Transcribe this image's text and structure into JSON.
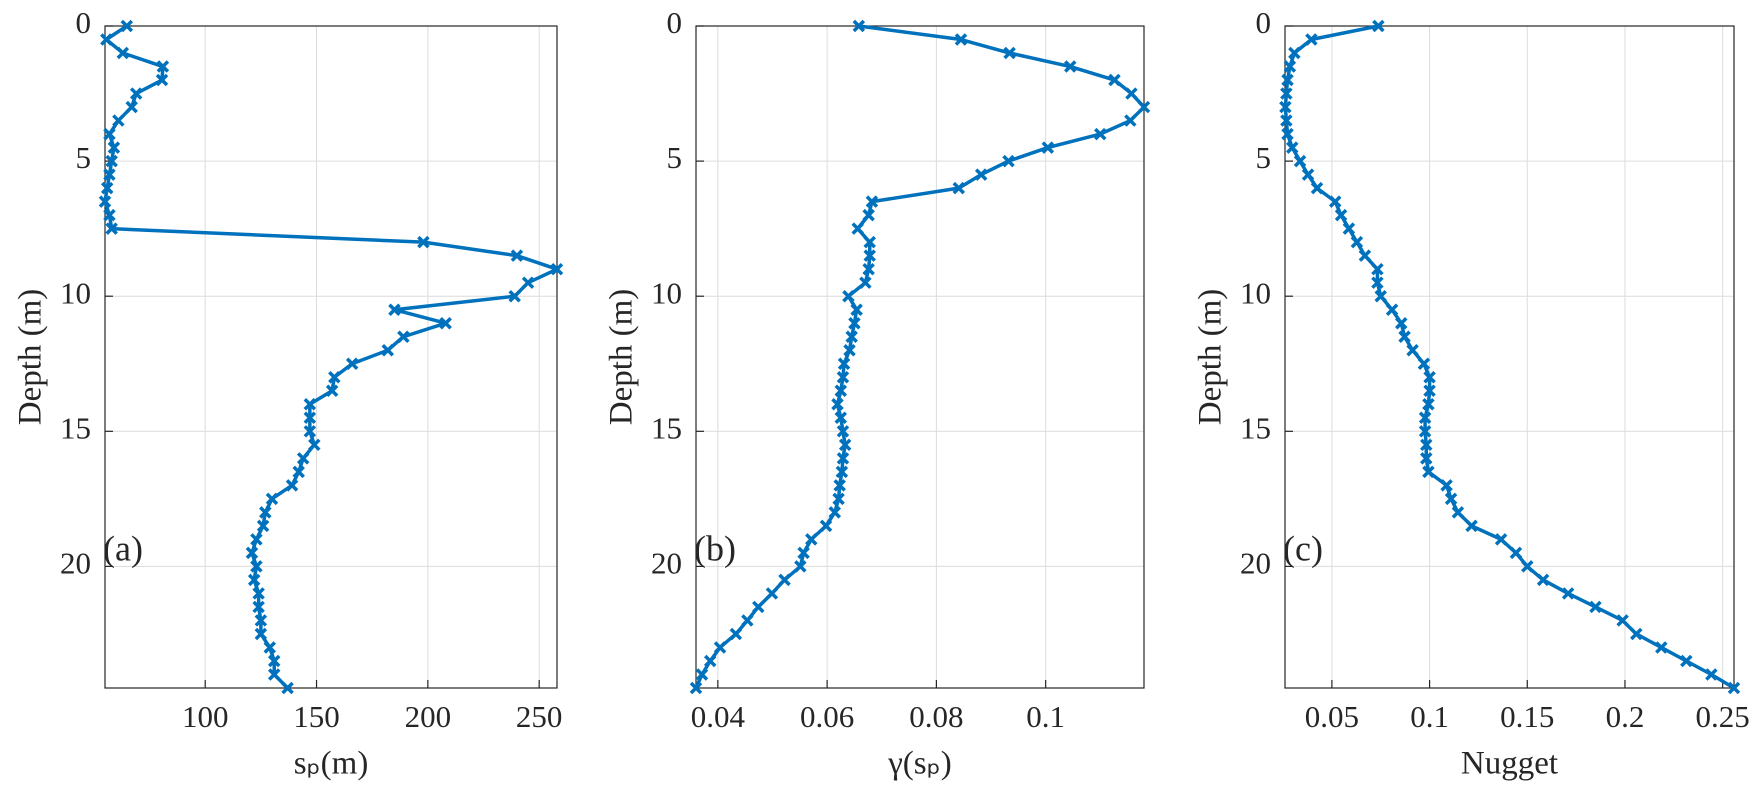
{
  "chart_data": [
    {
      "type": "line",
      "ylabel": "Depth (m)",
      "xlabel": "sₚ(m)",
      "annotation": "(a)",
      "color": "#0072bd",
      "marker": "x",
      "grid": true,
      "yreverse": true,
      "y": [
        0,
        0.5,
        1,
        1.5,
        2,
        2.5,
        3,
        3.5,
        4,
        4.5,
        5,
        5.5,
        6,
        6.5,
        7,
        7.5,
        8,
        8.5,
        9,
        9.5,
        10,
        10.5,
        11,
        11.5,
        12,
        12.5,
        13,
        13.5,
        14,
        14.5,
        15,
        15.5,
        16,
        16.5,
        17,
        17.5,
        18,
        18.5,
        19,
        19.5,
        20,
        20.5,
        21,
        21.5,
        22,
        22.5,
        23,
        23.5,
        24,
        24.5
      ],
      "values": [
        64.8,
        55.6,
        63,
        81,
        80.6,
        69,
        67,
        61,
        57,
        59,
        58,
        57,
        56,
        55,
        57,
        58,
        198,
        240,
        258,
        245,
        239,
        185,
        208,
        189,
        182,
        166,
        158,
        157,
        147,
        147,
        147,
        149,
        144,
        142,
        139,
        130,
        127,
        126,
        123,
        121,
        123,
        122,
        124,
        124,
        125,
        125,
        129,
        131,
        131,
        137
      ],
      "xlim": [
        55,
        258
      ],
      "xticks": [
        100,
        150,
        200,
        250
      ],
      "ylim": [
        0,
        24.5
      ],
      "yticks": [
        0,
        5,
        10,
        15,
        20
      ]
    },
    {
      "type": "line",
      "ylabel": "Depth (m)",
      "xlabel": "γ(sₚ)",
      "annotation": "(b)",
      "color": "#0072bd",
      "marker": "x",
      "grid": true,
      "yreverse": true,
      "y": [
        0,
        0.5,
        1,
        1.5,
        2,
        2.5,
        3,
        3.5,
        4,
        4.5,
        5,
        5.5,
        6,
        6.5,
        7,
        7.5,
        8,
        8.5,
        9,
        9.5,
        10,
        10.5,
        11,
        11.5,
        12,
        12.5,
        13,
        13.5,
        14,
        14.5,
        15,
        15.5,
        16,
        16.5,
        17,
        17.5,
        18,
        18.5,
        19,
        19.5,
        20,
        20.5,
        21,
        21.5,
        22,
        22.5,
        23,
        23.5,
        24,
        24.5
      ],
      "values": [
        0.0658,
        0.0845,
        0.0934,
        0.1045,
        0.1126,
        0.1157,
        0.118,
        0.1155,
        0.11,
        0.1004,
        0.0932,
        0.0882,
        0.0841,
        0.0682,
        0.0676,
        0.0656,
        0.0678,
        0.0678,
        0.0676,
        0.067,
        0.0639,
        0.0654,
        0.065,
        0.0645,
        0.0641,
        0.0631,
        0.0629,
        0.0625,
        0.0619,
        0.0625,
        0.0629,
        0.0633,
        0.0629,
        0.0627,
        0.0623,
        0.0621,
        0.0614,
        0.0598,
        0.0571,
        0.0557,
        0.0551,
        0.0522,
        0.0499,
        0.0474,
        0.0454,
        0.0433,
        0.0404,
        0.0386,
        0.0371,
        0.036
      ],
      "xlim": [
        0.036,
        0.118
      ],
      "xticks": [
        0.04,
        0.06,
        0.08,
        0.1
      ],
      "ylim": [
        0,
        24.5
      ],
      "yticks": [
        0,
        5,
        10,
        15,
        20
      ]
    },
    {
      "type": "line",
      "ylabel": "Depth (m)",
      "xlabel": "Nugget",
      "annotation": "(c)",
      "color": "#0072bd",
      "marker": "x",
      "grid": true,
      "yreverse": true,
      "y": [
        0,
        0.5,
        1,
        1.5,
        2,
        2.5,
        3,
        3.5,
        4,
        4.5,
        5,
        5.5,
        6,
        6.5,
        7,
        7.5,
        8,
        8.5,
        9,
        9.5,
        10,
        10.5,
        11,
        11.5,
        12,
        12.5,
        13,
        13.5,
        14,
        14.5,
        15,
        15.5,
        16,
        16.5,
        17,
        17.5,
        18,
        18.5,
        19,
        19.5,
        20,
        20.5,
        21,
        21.5,
        22,
        22.5,
        23,
        23.5,
        24,
        24.5
      ],
      "values": [
        0.0738,
        0.0395,
        0.0308,
        0.0285,
        0.0273,
        0.0267,
        0.0262,
        0.0267,
        0.0273,
        0.0297,
        0.0337,
        0.0378,
        0.0424,
        0.0517,
        0.0547,
        0.0587,
        0.0628,
        0.0669,
        0.0733,
        0.0733,
        0.075,
        0.0808,
        0.0855,
        0.0872,
        0.0913,
        0.0971,
        0.1,
        0.1,
        0.0994,
        0.0977,
        0.0977,
        0.0983,
        0.0983,
        0.0994,
        0.1087,
        0.111,
        0.1145,
        0.1215,
        0.1366,
        0.1442,
        0.15,
        0.1581,
        0.1709,
        0.1849,
        0.1988,
        0.2058,
        0.2186,
        0.2314,
        0.2442,
        0.2558
      ],
      "xlim": [
        0.026,
        0.2558
      ],
      "xticks": [
        0.05,
        0.1,
        0.15,
        0.2,
        0.25
      ],
      "ylim": [
        0,
        24.5
      ],
      "yticks": [
        0,
        5,
        10,
        15,
        20
      ]
    }
  ]
}
